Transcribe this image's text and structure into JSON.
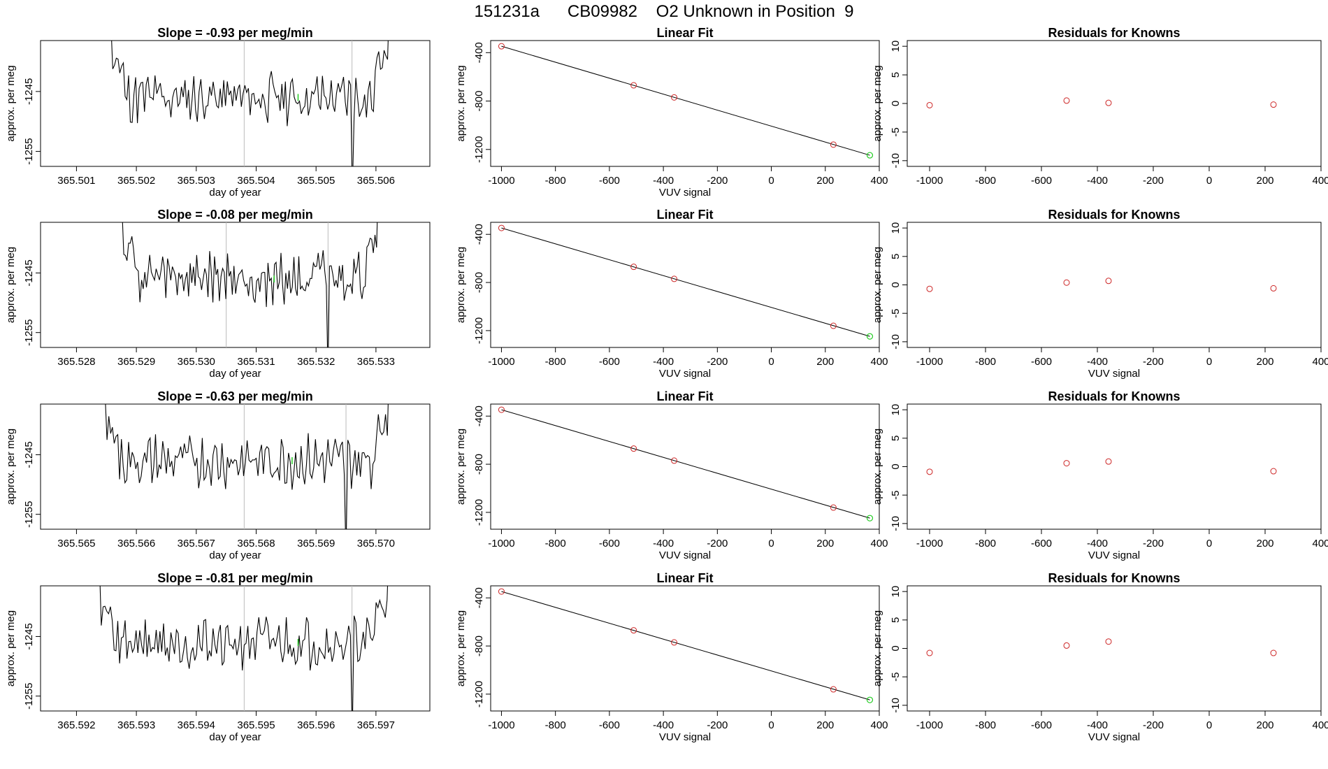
{
  "figure_title": "151231a      CB09982    O2 Unknown in Position  9",
  "colors": {
    "line": "#000000",
    "known": "#cd2626",
    "unknown": "#22cc22",
    "marker": "#bbbbbb",
    "frame": "#000000"
  },
  "chart_data": [
    {
      "type": "line",
      "title": "Slope =  -0.93  per meg/min",
      "xlabel": "day of year",
      "ylabel": "approx. per meg",
      "xlim": [
        365.5004,
        365.5069
      ],
      "ylim": [
        -1257.5,
        -1236.5
      ],
      "xticks": [
        "365.501",
        "365.502",
        "365.503",
        "365.504",
        "365.505",
        "365.506"
      ],
      "yticks": [
        "-1245",
        "-1255"
      ],
      "markers": [
        365.5038,
        365.5056
      ],
      "series": [
        {
          "x_start": 365.5014,
          "x_end": 365.5064,
          "seed": 11,
          "unknown_x": 365.5047
        }
      ]
    },
    {
      "type": "scatter",
      "title": "Linear Fit",
      "xlabel": "VUV signal",
      "ylabel": "approx. per meg",
      "xlim": [
        -1040,
        400
      ],
      "ylim": [
        -1340,
        -300
      ],
      "xticks": [
        "-1000",
        "-800",
        "-600",
        "-400",
        "-200",
        "0",
        "200",
        "400"
      ],
      "yticks": [
        "-400",
        "-800",
        "-1200"
      ],
      "fit_line": [
        [
          -1000,
          -347
        ],
        [
          365,
          -1248
        ]
      ],
      "knowns": [
        [
          -1000,
          -347
        ],
        [
          -510,
          -670
        ],
        [
          -360,
          -770
        ],
        [
          230,
          -1160
        ]
      ],
      "unknown": [
        [
          365,
          -1248
        ]
      ]
    },
    {
      "type": "scatter",
      "title": "Residuals for Knowns",
      "xlabel": "",
      "ylabel": "approx. per meg",
      "xlim": [
        -1080,
        400
      ],
      "ylim": [
        -11,
        11
      ],
      "xticks": [
        "-1000",
        "-800",
        "-600",
        "-400",
        "-200",
        "0",
        "200",
        "400"
      ],
      "yticks": [
        "10",
        "5",
        "0",
        "-5",
        "-10"
      ],
      "points": [
        [
          -1000,
          -0.3
        ],
        [
          -510,
          0.5
        ],
        [
          -360,
          0.1
        ],
        [
          230,
          -0.2
        ]
      ]
    },
    {
      "type": "line",
      "title": "Slope =  -0.08  per meg/min",
      "xlabel": "day of year",
      "ylabel": "approx. per meg",
      "xlim": [
        365.5274,
        365.5339
      ],
      "ylim": [
        -1257.5,
        -1236.5
      ],
      "xticks": [
        "365.528",
        "365.529",
        "365.530",
        "365.531",
        "365.532",
        "365.533"
      ],
      "yticks": [
        "-1245",
        "-1255"
      ],
      "markers": [
        365.5305,
        365.5322
      ],
      "series": [
        {
          "x_start": 365.5286,
          "x_end": 365.5332,
          "seed": 27,
          "unknown_x": 365.5313
        }
      ]
    },
    {
      "type": "scatter",
      "title": "Linear Fit",
      "xlabel": "VUV signal",
      "ylabel": "approx. per meg",
      "xlim": [
        -1040,
        400
      ],
      "ylim": [
        -1340,
        -300
      ],
      "xticks": [
        "-1000",
        "-800",
        "-600",
        "-400",
        "-200",
        "0",
        "200",
        "400"
      ],
      "yticks": [
        "-400",
        "-800",
        "-1200"
      ],
      "fit_line": [
        [
          -1000,
          -347
        ],
        [
          365,
          -1248
        ]
      ],
      "knowns": [
        [
          -1000,
          -347
        ],
        [
          -510,
          -670
        ],
        [
          -360,
          -770
        ],
        [
          230,
          -1160
        ]
      ],
      "unknown": [
        [
          365,
          -1248
        ]
      ]
    },
    {
      "type": "scatter",
      "title": "Residuals for Knowns",
      "xlabel": "VUV signal",
      "ylabel": "approx. per meg",
      "xlim": [
        -1080,
        400
      ],
      "ylim": [
        -11,
        11
      ],
      "xticks": [
        "-1000",
        "-800",
        "-600",
        "-400",
        "-200",
        "0",
        "200",
        "400"
      ],
      "yticks": [
        "10",
        "5",
        "0",
        "-5",
        "-10"
      ],
      "points": [
        [
          -1000,
          -0.7
        ],
        [
          -510,
          0.4
        ],
        [
          -360,
          0.7
        ],
        [
          230,
          -0.6
        ]
      ]
    },
    {
      "type": "line",
      "title": "Slope =  -0.63  per meg/min",
      "xlabel": "day of year",
      "ylabel": "approx. per meg",
      "xlim": [
        365.5644,
        365.5709
      ],
      "ylim": [
        -1257.5,
        -1236.5
      ],
      "xticks": [
        "365.565",
        "365.566",
        "365.567",
        "365.568",
        "365.569",
        "365.570"
      ],
      "yticks": [
        "-1245",
        "-1255"
      ],
      "markers": [
        365.5678,
        365.5695
      ],
      "series": [
        {
          "x_start": 365.5653,
          "x_end": 365.5704,
          "seed": 43,
          "unknown_x": 365.5686
        }
      ]
    },
    {
      "type": "scatter",
      "title": "Linear Fit",
      "xlabel": "VUV signal",
      "ylabel": "approx. per meg",
      "xlim": [
        -1040,
        400
      ],
      "ylim": [
        -1340,
        -300
      ],
      "xticks": [
        "-1000",
        "-800",
        "-600",
        "-400",
        "-200",
        "0",
        "200",
        "400"
      ],
      "yticks": [
        "-400",
        "-800",
        "-1200"
      ],
      "fit_line": [
        [
          -1000,
          -347
        ],
        [
          365,
          -1248
        ]
      ],
      "knowns": [
        [
          -1000,
          -347
        ],
        [
          -510,
          -670
        ],
        [
          -360,
          -770
        ],
        [
          230,
          -1160
        ]
      ],
      "unknown": [
        [
          365,
          -1248
        ]
      ]
    },
    {
      "type": "scatter",
      "title": "Residuals for Knowns",
      "xlabel": "VUV signal",
      "ylabel": "approx. per meg",
      "xlim": [
        -1080,
        400
      ],
      "ylim": [
        -11,
        11
      ],
      "xticks": [
        "-1000",
        "-800",
        "-600",
        "-400",
        "-200",
        "0",
        "200",
        "400"
      ],
      "yticks": [
        "10",
        "5",
        "0",
        "-5",
        "-10"
      ],
      "points": [
        [
          -1000,
          -0.9
        ],
        [
          -510,
          0.6
        ],
        [
          -360,
          0.9
        ],
        [
          230,
          -0.8
        ]
      ]
    },
    {
      "type": "line",
      "title": "Slope =  -0.81  per meg/min",
      "xlabel": "day of year",
      "ylabel": "approx. per meg",
      "xlim": [
        365.5914,
        365.5979
      ],
      "ylim": [
        -1257.5,
        -1236.5
      ],
      "xticks": [
        "365.592",
        "365.593",
        "365.594",
        "365.595",
        "365.596",
        "365.597"
      ],
      "yticks": [
        "-1245",
        "-1255"
      ],
      "markers": [
        365.5948,
        365.5966
      ],
      "series": [
        {
          "x_start": 365.5922,
          "x_end": 365.5974,
          "seed": 59,
          "unknown_x": 365.5957
        }
      ]
    },
    {
      "type": "scatter",
      "title": "Linear Fit",
      "xlabel": "VUV signal",
      "ylabel": "approx. per meg",
      "xlim": [
        -1040,
        400
      ],
      "ylim": [
        -1340,
        -300
      ],
      "xticks": [
        "-1000",
        "-800",
        "-600",
        "-400",
        "-200",
        "0",
        "200",
        "400"
      ],
      "yticks": [
        "-400",
        "-800",
        "-1200"
      ],
      "fit_line": [
        [
          -1000,
          -347
        ],
        [
          365,
          -1248
        ]
      ],
      "knowns": [
        [
          -1000,
          -347
        ],
        [
          -510,
          -670
        ],
        [
          -360,
          -770
        ],
        [
          230,
          -1160
        ]
      ],
      "unknown": [
        [
          365,
          -1248
        ]
      ]
    },
    {
      "type": "scatter",
      "title": "Residuals for Knowns",
      "xlabel": "VUV signal",
      "ylabel": "approx. per meg",
      "xlim": [
        -1080,
        400
      ],
      "ylim": [
        -11,
        11
      ],
      "xticks": [
        "-1000",
        "-800",
        "-600",
        "-400",
        "-200",
        "0",
        "200",
        "400"
      ],
      "yticks": [
        "10",
        "5",
        "0",
        "-5",
        "-10"
      ],
      "points": [
        [
          -1000,
          -0.8
        ],
        [
          -510,
          0.5
        ],
        [
          -360,
          1.2
        ],
        [
          230,
          -0.8
        ]
      ]
    }
  ]
}
